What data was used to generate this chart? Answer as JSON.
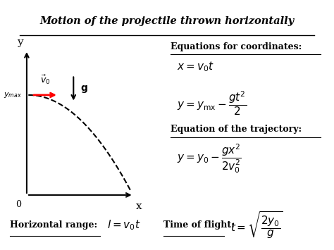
{
  "title": "Motion of the projectile thrown horizontally",
  "bg_color": "#ffffff",
  "fig_width": 4.74,
  "fig_height": 3.55,
  "eq_coord_header": "Equations for coordinates:",
  "eq_traj_header": "Equation of the trajectory:",
  "horiz_range_label": "Horizontal range:",
  "time_flight_label": "Time of flight:"
}
